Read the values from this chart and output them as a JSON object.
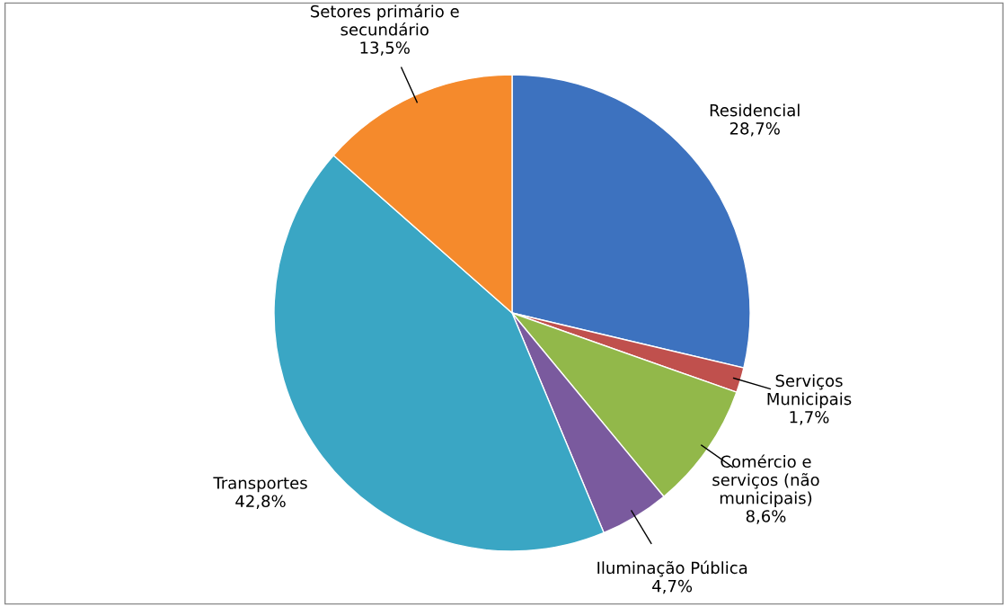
{
  "chart_data": {
    "type": "pie",
    "categories": [
      "Residencial",
      "Serviços\nMunicipais",
      "Comércio e\nserviços (não\nmunicipais)",
      "Iluminação Pública",
      "Transportes",
      "Setores primário e\nsecundário"
    ],
    "values": [
      28.7,
      1.7,
      8.6,
      4.7,
      42.8,
      13.5
    ],
    "value_labels": [
      "28,7%",
      "1,7%",
      "8,6%",
      "4,7%",
      "42,8%",
      "13,5%"
    ],
    "colors": [
      "#3d72bf",
      "#c0504d",
      "#92b84a",
      "#7a5a9e",
      "#3aa6c4",
      "#f58a2c"
    ],
    "legend": false
  }
}
